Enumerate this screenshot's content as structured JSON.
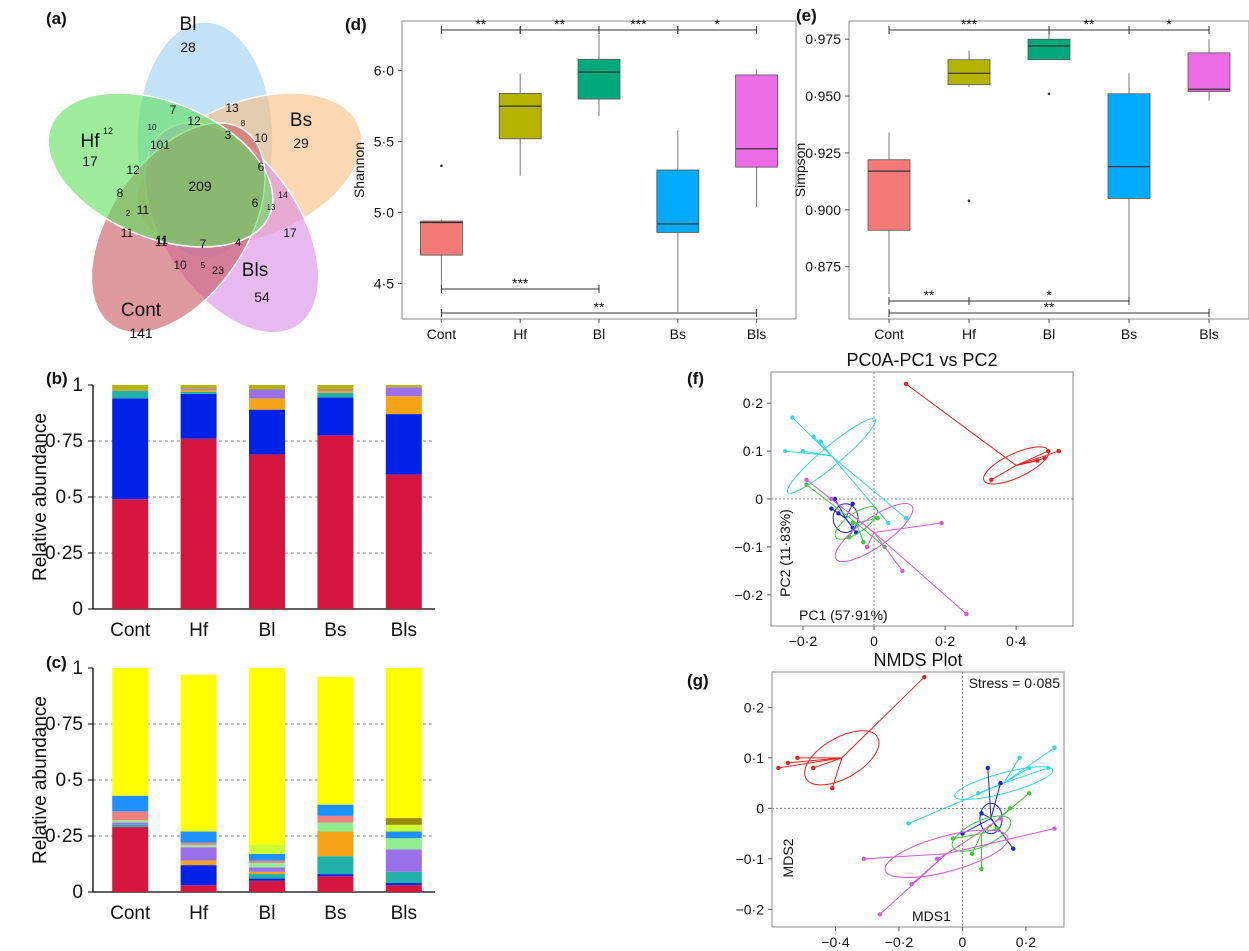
{
  "panel_labels": {
    "a": "(a)",
    "b": "(b)",
    "c": "(c)",
    "d": "(d)",
    "e": "(e)",
    "f": "(f)",
    "g": "(g)"
  },
  "colors": {
    "Cont": "#f47a77",
    "Hf": "#b3b300",
    "Bl": "#00a97a",
    "Bs": "#00aaff",
    "Bls": "#ee6be8"
  },
  "chart_data": [
    {
      "id": "venn",
      "type": "venn",
      "sets": [
        {
          "name": "Bl",
          "unique": "28",
          "color": "#9ecff2"
        },
        {
          "name": "Bs",
          "unique": "29",
          "color": "#f8c081"
        },
        {
          "name": "Bls",
          "unique": "54",
          "color": "#da8ee8"
        },
        {
          "name": "Cont",
          "unique": "141",
          "color": "#c95a64"
        },
        {
          "name": "Hf",
          "unique": "17",
          "color": "#5fe05f"
        }
      ],
      "overlaps": [
        "7",
        "13",
        "10",
        "8",
        "12",
        "12",
        "3",
        "10",
        "101",
        "6",
        "209",
        "12",
        "14",
        "8",
        "13",
        "6",
        "11",
        "2",
        "17",
        "11",
        "4",
        "11",
        "7",
        "11",
        "10",
        "5",
        "23"
      ],
      "core": "209"
    },
    {
      "id": "phylum",
      "type": "bar",
      "stacked": true,
      "categories": [
        "Cont",
        "Hf",
        "Bl",
        "Bs",
        "Bls"
      ],
      "ylabel": "Relative abundance",
      "ylim": [
        0,
        1
      ],
      "yticks": [
        "0",
        "0·25",
        "0·5",
        "0·75",
        "1"
      ],
      "grid": "dashed at 0.25, 0.5, 0.75",
      "series": [
        {
          "color": "#d7163f",
          "values": [
            0.49,
            0.76,
            0.69,
            0.775,
            0.6
          ]
        },
        {
          "color": "#0022e8",
          "values": [
            0.45,
            0.2,
            0.2,
            0.17,
            0.27
          ]
        },
        {
          "color": "#20b2aa",
          "values": [
            0.035,
            0.01,
            0.0,
            0.02,
            0.0
          ]
        },
        {
          "color": "#f5a418",
          "values": [
            0.005,
            0.01,
            0.05,
            0.01,
            0.08
          ]
        },
        {
          "color": "#9a70ea",
          "values": [
            0.0,
            0.005,
            0.04,
            0.005,
            0.04
          ]
        },
        {
          "color": "#b3b300",
          "values": [
            0.02,
            0.015,
            0.02,
            0.02,
            0.01
          ]
        }
      ]
    },
    {
      "id": "genus",
      "type": "bar",
      "stacked": true,
      "categories": [
        "Cont",
        "Hf",
        "Bl",
        "Bs",
        "Bls"
      ],
      "ylabel": "Relative abundance",
      "ylim": [
        0,
        1
      ],
      "yticks": [
        "0",
        "0·25",
        "0·5",
        "0·75",
        "1"
      ],
      "grid": "dashed at 0.25, 0.5, 0.75",
      "series": [
        {
          "color": "#d7163f",
          "values": [
            0.29,
            0.03,
            0.05,
            0.07,
            0.03
          ]
        },
        {
          "color": "#0022e8",
          "values": [
            0.0,
            0.09,
            0.01,
            0.01,
            0.01
          ]
        },
        {
          "color": "#20b2aa",
          "values": [
            0.01,
            0.0,
            0.02,
            0.08,
            0.05
          ]
        },
        {
          "color": "#f5a418",
          "values": [
            0.0,
            0.02,
            0.01,
            0.11,
            0.0
          ]
        },
        {
          "color": "#9a70ea",
          "values": [
            0.01,
            0.06,
            0.02,
            0.0,
            0.1
          ]
        },
        {
          "color": "#90ee90",
          "values": [
            0.01,
            0.01,
            0.02,
            0.04,
            0.05
          ]
        },
        {
          "color": "#f08080",
          "values": [
            0.04,
            0.01,
            0.01,
            0.03,
            0.0
          ]
        },
        {
          "color": "#1e90ff",
          "values": [
            0.07,
            0.05,
            0.03,
            0.05,
            0.03
          ]
        },
        {
          "color": "#ccff33",
          "values": [
            0.0,
            0.0,
            0.04,
            0.0,
            0.03
          ]
        },
        {
          "color": "#9a8c00",
          "values": [
            0.0,
            0.0,
            0.0,
            0.0,
            0.03
          ]
        },
        {
          "color": "#ffff00",
          "values": [
            0.57,
            0.7,
            0.79,
            0.57,
            0.67
          ]
        }
      ]
    },
    {
      "id": "shannon",
      "type": "box",
      "categories": [
        "Cont",
        "Hf",
        "Bl",
        "Bs",
        "Bls"
      ],
      "ylabel": "Shannon",
      "ylim": [
        4.25,
        6.35
      ],
      "yticks": [
        "4·5",
        "5·0",
        "5·5",
        "6·0"
      ],
      "boxes": [
        {
          "min": 4.47,
          "q1": 4.7,
          "median": 4.93,
          "q3": 4.94,
          "max": 4.95,
          "outliers": [
            5.33
          ]
        },
        {
          "min": 5.26,
          "q1": 5.52,
          "median": 5.75,
          "q3": 5.84,
          "max": 5.98
        },
        {
          "min": 5.68,
          "q1": 5.8,
          "median": 5.99,
          "q3": 6.08,
          "max": 6.25
        },
        {
          "min": 4.3,
          "q1": 4.86,
          "median": 4.92,
          "q3": 5.3,
          "max": 5.58
        },
        {
          "min": 5.04,
          "q1": 5.32,
          "median": 5.45,
          "q3": 5.97,
          "max": 6.01
        }
      ],
      "brackets": [
        {
          "from": "Cont",
          "to": "Hf",
          "label": "**",
          "pos": "top"
        },
        {
          "from": "Hf",
          "to": "Bl",
          "label": "**",
          "pos": "top"
        },
        {
          "from": "Bl",
          "to": "Bs",
          "label": "***",
          "pos": "top"
        },
        {
          "from": "Bs",
          "to": "Bls",
          "label": "*",
          "pos": "top"
        },
        {
          "from": "Cont",
          "to": "Bl",
          "label": "***",
          "pos": "bottom1"
        },
        {
          "from": "Cont",
          "to": "Bls",
          "label": "**",
          "pos": "bottom2"
        }
      ]
    },
    {
      "id": "simpson",
      "type": "box",
      "categories": [
        "Cont",
        "Hf",
        "Bl",
        "Bs",
        "Bls"
      ],
      "ylabel": "Simpson",
      "ylim": [
        0.852,
        0.983
      ],
      "yticks": [
        "0·875",
        "0·900",
        "0·925",
        "0·950",
        "0·975"
      ],
      "boxes": [
        {
          "min": 0.863,
          "q1": 0.891,
          "median": 0.917,
          "q3": 0.922,
          "max": 0.934
        },
        {
          "min": 0.954,
          "q1": 0.955,
          "median": 0.96,
          "q3": 0.966,
          "max": 0.97,
          "outliers": [
            0.904
          ]
        },
        {
          "min": 0.966,
          "q1": 0.966,
          "median": 0.972,
          "q3": 0.975,
          "max": 0.978,
          "outliers": [
            0.951
          ]
        },
        {
          "min": 0.861,
          "q1": 0.905,
          "median": 0.919,
          "q3": 0.951,
          "max": 0.96
        },
        {
          "min": 0.948,
          "q1": 0.952,
          "median": 0.953,
          "q3": 0.969,
          "max": 0.975
        }
      ],
      "brackets": [
        {
          "from": "Cont",
          "to": "Bl",
          "label": "***",
          "pos": "top"
        },
        {
          "from": "Bl",
          "to": "Bs",
          "label": "**",
          "pos": "top"
        },
        {
          "from": "Bs",
          "to": "Bls",
          "label": "*",
          "pos": "top"
        },
        {
          "from": "Cont",
          "to": "Hf",
          "label": "**",
          "pos": "bottom1"
        },
        {
          "from": "Hf",
          "to": "Bs",
          "label": "*",
          "pos": "bottom1"
        },
        {
          "from": "Cont",
          "to": "Bls",
          "label": "**",
          "pos": "bottom2"
        }
      ]
    },
    {
      "id": "pcoa",
      "type": "scatter",
      "title": "PC0A-PC1 vs PC2",
      "xlabel": "PC1 (57·91%)",
      "ylabel": "PC2 (11·83%)",
      "xlim": [
        -0.29,
        0.56
      ],
      "ylim": [
        -0.265,
        0.265
      ],
      "xticks": [
        -0.2,
        0,
        0.2,
        0.4
      ],
      "xtick_labels": [
        "−0·2",
        "0",
        "0·2",
        "0·4"
      ],
      "yticks": [
        -0.2,
        -0.1,
        0,
        0.1,
        0.2
      ],
      "ytick_labels": [
        "−0·2",
        "−0·1",
        "0",
        "0·1",
        "0·2"
      ],
      "groups": [
        {
          "color": "#e8201e",
          "center": [
            0.4,
            0.07
          ],
          "ellipse": [
            0.1,
            0.025,
            -25
          ],
          "points": [
            [
              0.09,
              0.24
            ],
            [
              0.52,
              0.1
            ],
            [
              0.48,
              0.085
            ],
            [
              0.46,
              0.08
            ],
            [
              0.33,
              0.04
            ],
            [
              0.49,
              0.1
            ]
          ]
        },
        {
          "color": "#33d6ee",
          "center": [
            -0.12,
            0.09
          ],
          "ellipse": [
            0.16,
            0.02,
            -40
          ],
          "points": [
            [
              -0.23,
              0.17
            ],
            [
              -0.25,
              0.1
            ],
            [
              -0.17,
              0.13
            ],
            [
              -0.15,
              0.12
            ],
            [
              0.04,
              -0.05
            ],
            [
              0.09,
              -0.04
            ],
            [
              -0.2,
              0.1
            ]
          ]
        },
        {
          "color": "#1c1ee0",
          "center": [
            -0.08,
            -0.04
          ],
          "ellipse": [
            0.035,
            0.03,
            0
          ],
          "points": [
            [
              -0.11,
              0.0
            ],
            [
              -0.06,
              -0.06
            ],
            [
              -0.1,
              -0.03
            ],
            [
              -0.06,
              -0.01
            ],
            [
              -0.12,
              -0.02
            ],
            [
              -0.05,
              -0.07
            ]
          ]
        },
        {
          "color": "#3acb3a",
          "center": [
            -0.05,
            -0.05
          ],
          "ellipse": [
            0.07,
            0.02,
            -35
          ],
          "points": [
            [
              -0.19,
              0.03
            ],
            [
              -0.03,
              -0.09
            ],
            [
              0.01,
              -0.04
            ],
            [
              -0.07,
              -0.08
            ],
            [
              0.03,
              -0.1
            ],
            [
              -0.06,
              -0.05
            ]
          ]
        },
        {
          "color": "#d45ad9",
          "center": [
            0.0,
            -0.07
          ],
          "ellipse": [
            0.13,
            0.03,
            -35
          ],
          "points": [
            [
              -0.19,
              0.04
            ],
            [
              0.19,
              -0.05
            ],
            [
              0.26,
              -0.24
            ],
            [
              -0.12,
              0.0
            ],
            [
              0.08,
              -0.15
            ],
            [
              -0.02,
              -0.1
            ]
          ]
        }
      ]
    },
    {
      "id": "nmds",
      "type": "scatter",
      "title": "NMDS Plot",
      "annotation": "Stress = 0·085",
      "xlabel": "MDS1",
      "ylabel": "MDS2",
      "xlim": [
        -0.6,
        0.32
      ],
      "ylim": [
        -0.235,
        0.27
      ],
      "xticks": [
        -0.4,
        -0.2,
        0,
        0.2
      ],
      "xtick_labels": [
        "−0·4",
        "−0·2",
        "0",
        "0·2"
      ],
      "yticks": [
        -0.2,
        -0.1,
        0,
        0.1,
        0.2
      ],
      "ytick_labels": [
        "−0·2",
        "−0·1",
        "0",
        "0·1",
        "0·2"
      ],
      "groups": [
        {
          "color": "#e8201e",
          "center": [
            -0.38,
            0.1
          ],
          "ellipse": [
            0.13,
            0.04,
            -30
          ],
          "points": [
            [
              -0.12,
              0.26
            ],
            [
              -0.58,
              0.08
            ],
            [
              -0.52,
              0.1
            ],
            [
              -0.47,
              0.08
            ],
            [
              -0.41,
              0.04
            ],
            [
              -0.55,
              0.09
            ]
          ]
        },
        {
          "color": "#33d6ee",
          "center": [
            0.13,
            0.05
          ],
          "ellipse": [
            0.16,
            0.02,
            -15
          ],
          "points": [
            [
              -0.17,
              -0.03
            ],
            [
              0.29,
              0.12
            ],
            [
              0.27,
              0.08
            ],
            [
              0.18,
              0.1
            ],
            [
              0.05,
              0.03
            ],
            [
              0.21,
              0.08
            ]
          ]
        },
        {
          "color": "#1c1ee0",
          "center": [
            0.09,
            -0.02
          ],
          "ellipse": [
            0.035,
            0.03,
            0
          ],
          "points": [
            [
              0.08,
              0.08
            ],
            [
              0.12,
              0.05
            ],
            [
              0.0,
              -0.05
            ],
            [
              0.16,
              -0.08
            ],
            [
              0.06,
              -0.01
            ],
            [
              0.11,
              -0.04
            ]
          ]
        },
        {
          "color": "#3acb3a",
          "center": [
            0.06,
            -0.05
          ],
          "ellipse": [
            0.1,
            0.025,
            -25
          ],
          "points": [
            [
              0.21,
              0.03
            ],
            [
              0.03,
              -0.09
            ],
            [
              0.06,
              -0.12
            ],
            [
              -0.03,
              -0.06
            ],
            [
              0.11,
              -0.04
            ],
            [
              0.15,
              0.0
            ]
          ]
        },
        {
          "color": "#d45ad9",
          "center": [
            -0.05,
            -0.09
          ],
          "ellipse": [
            0.2,
            0.035,
            -15
          ],
          "points": [
            [
              -0.31,
              -0.1
            ],
            [
              0.29,
              -0.04
            ],
            [
              -0.26,
              -0.21
            ],
            [
              -0.08,
              -0.1
            ],
            [
              -0.16,
              -0.15
            ],
            [
              0.12,
              -0.02
            ]
          ]
        }
      ]
    }
  ]
}
